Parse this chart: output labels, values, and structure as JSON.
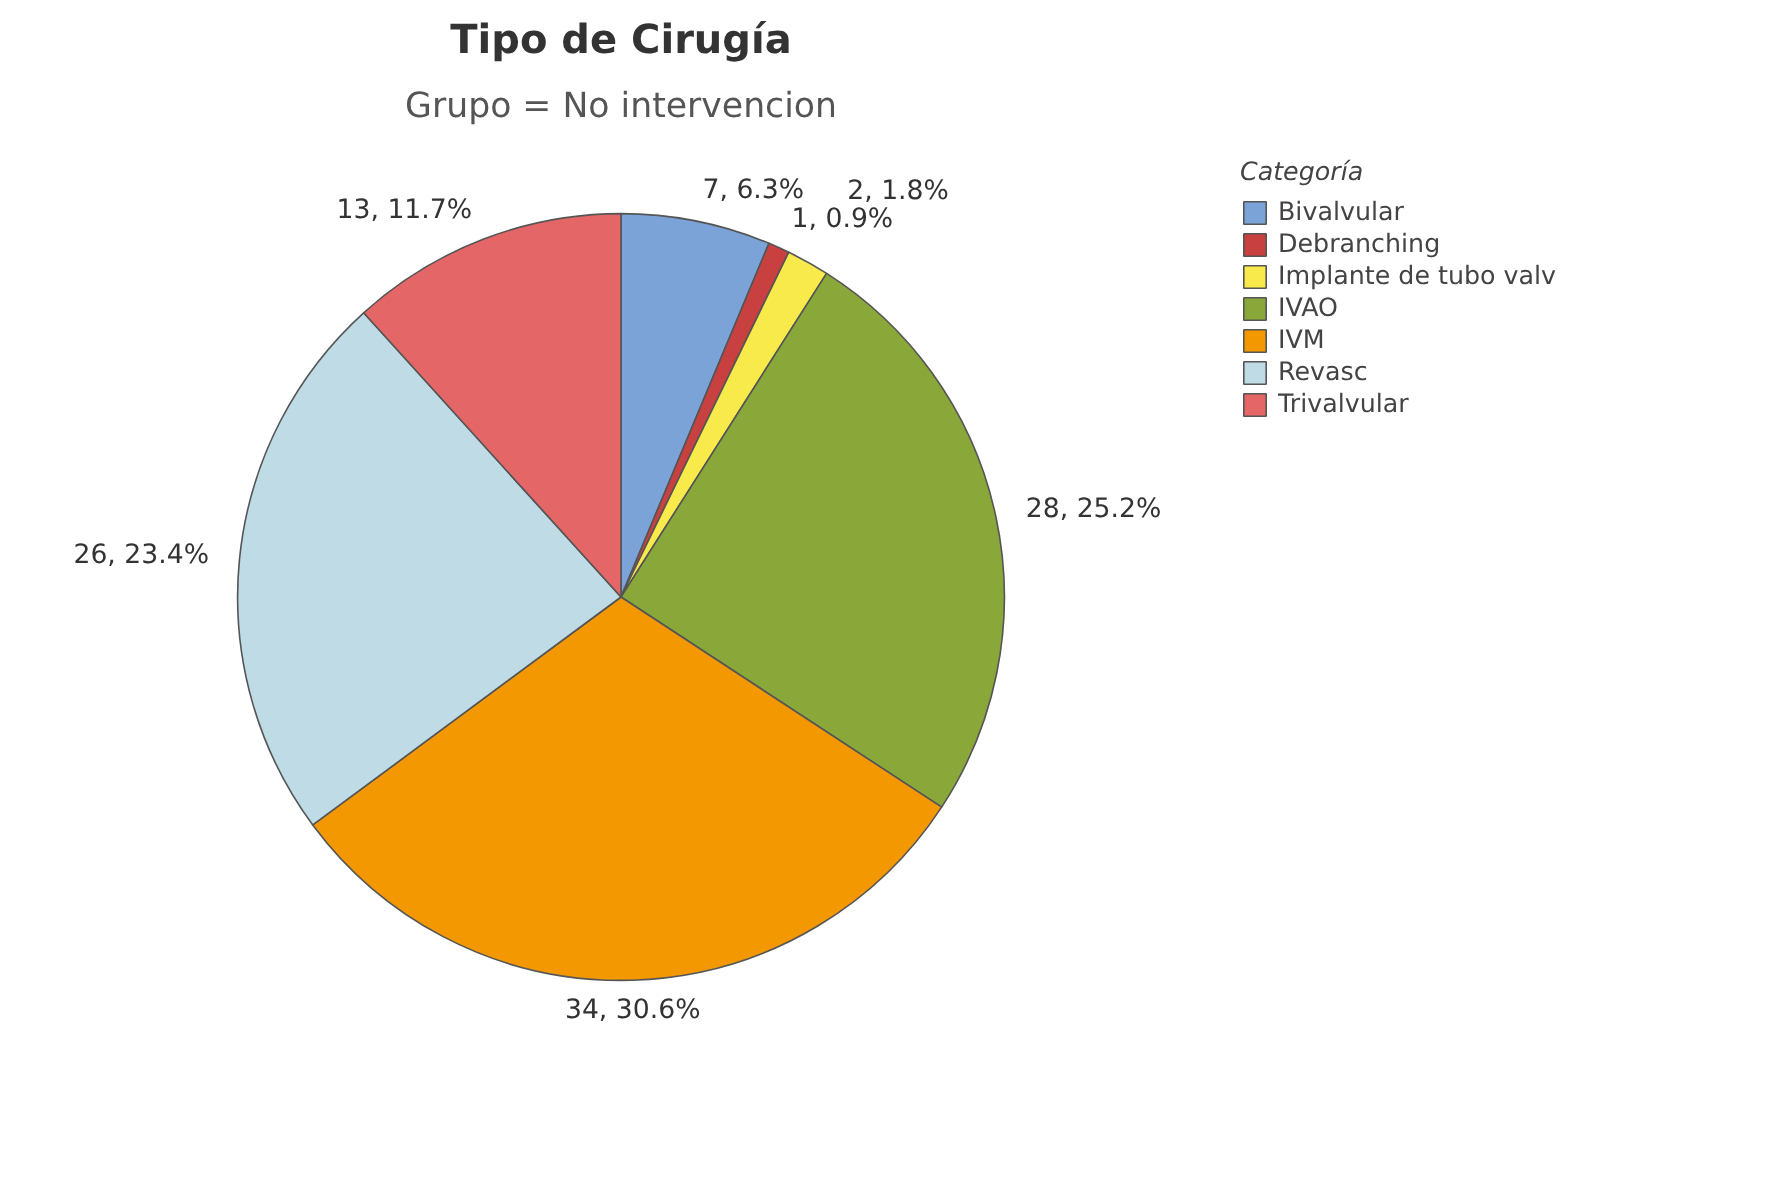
{
  "chart_data": {
    "type": "pie",
    "title": "Tipo de Cirugía",
    "subtitle": "Grupo = No intervencion",
    "legend_title": "Categoría",
    "categories": [
      "Bivalvular",
      "Debranching",
      "Implante de tubo valv",
      "IVAO",
      "IVM",
      "Revasc",
      "Trivalvular"
    ],
    "values": [
      7,
      1,
      2,
      28,
      34,
      26,
      13
    ],
    "value_labels": [
      "7, 6.3%",
      "1, 0.9%",
      "2, 1.8%",
      "28, 25.2%",
      "34, 30.6%",
      "26, 23.4%",
      "13, 11.7%"
    ],
    "colors": [
      "#7ba3d8",
      "#c94040",
      "#f8ea4a",
      "#8aa83a",
      "#f39800",
      "#bedbe6",
      "#e56666"
    ],
    "legend": "top right"
  }
}
